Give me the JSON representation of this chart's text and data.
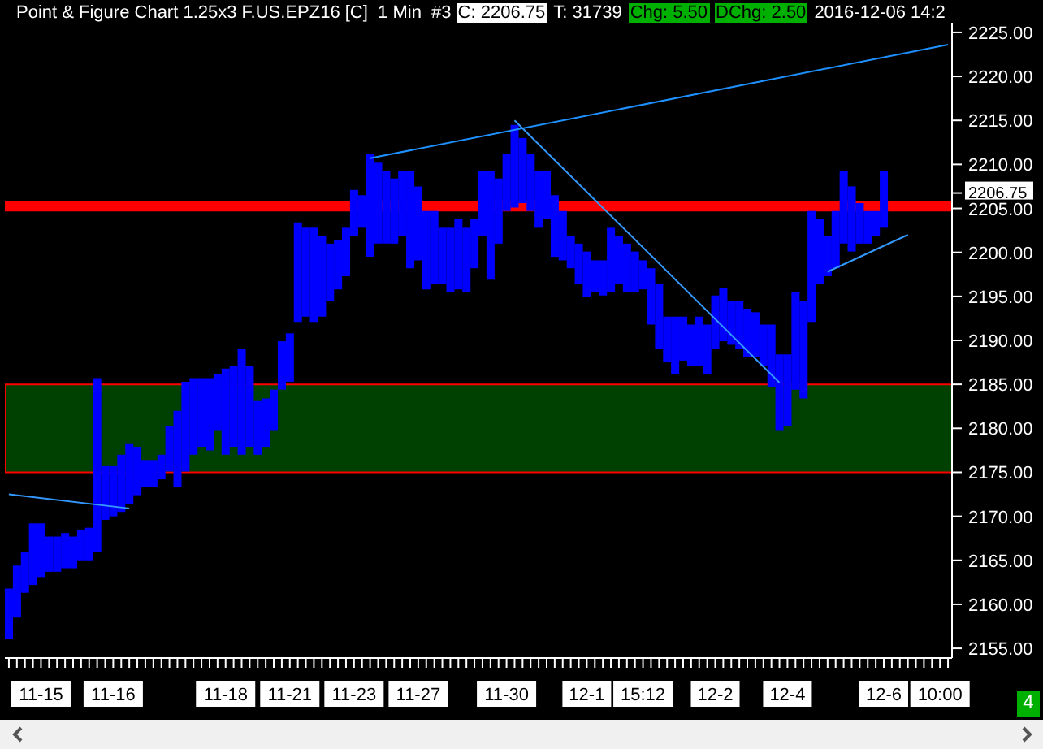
{
  "chart_data": {
    "type": "bar",
    "title": "Point & Figure Chart 1.25x3 F.US.EPZ16 [C]  1 Min  #3",
    "annotations": [
      "C: 2206.75",
      "T: 31739",
      "Chg: 5.50",
      "DChg: 2.50",
      "2016-12-06 14:2",
      "4"
    ],
    "categories": [
      null,
      null,
      null,
      null,
      "11-15",
      null,
      null,
      null,
      null,
      null,
      null,
      null,
      null,
      "11-16",
      null,
      null,
      null,
      null,
      null,
      null,
      null,
      null,
      null,
      null,
      null,
      null,
      null,
      "11-18",
      null,
      null,
      null,
      null,
      null,
      null,
      null,
      "11-21",
      null,
      null,
      null,
      null,
      null,
      null,
      null,
      "11-23",
      null,
      null,
      null,
      null,
      null,
      null,
      null,
      "11-27",
      null,
      null,
      null,
      null,
      null,
      null,
      null,
      null,
      null,
      null,
      "11-30",
      null,
      null,
      null,
      null,
      null,
      null,
      null,
      null,
      null,
      "12-1",
      null,
      null,
      null,
      null,
      null,
      null,
      "15:12",
      null,
      null,
      null,
      null,
      null,
      null,
      null,
      null,
      "12-2",
      null,
      null,
      null,
      null,
      null,
      null,
      null,
      null,
      "12-4",
      null,
      null,
      null,
      null,
      null,
      null,
      null,
      null,
      null,
      null,
      null,
      "12-6",
      null,
      null,
      null,
      null,
      null,
      null,
      "10:00",
      null
    ],
    "series": [
      {
        "color": "#0000ff",
        "values": [
          5.7,
          5.9,
          4.6,
          7.0,
          6.1,
          4.0,
          4.0,
          4.0,
          3.6,
          3.5,
          3.7,
          19.8,
          6.1,
          5.7,
          6.5,
          6.9,
          5.5,
          3.1,
          3.1,
          2.8,
          5.2,
          8.7,
          10.2,
          8.7,
          7.8,
          8.2,
          6.4,
          9.8,
          9.2,
          12.0,
          9.2,
          6.1,
          5.5,
          4.6,
          5.5,
          5.5,
          11.3,
          10.1,
          10.7,
          9.2,
          6.5,
          5.6,
          5.5,
          5.2,
          3.7,
          11.7,
          9.2,
          8.3,
          7.4,
          7.4,
          11.1,
          8.4,
          8.9,
          8.3,
          6.4,
          7.3,
          8.0,
          7.3,
          5.6,
          7.4,
          12.4,
          7.4,
          6.5,
          9.4,
          7.4,
          6.5,
          6.5,
          5.5,
          7.0,
          5.6,
          3.7,
          4.6,
          5.2,
          3.6,
          4.0,
          7.3,
          5.5,
          5.5,
          4.6,
          3.3,
          6.4,
          7.4,
          5.2,
          6.5,
          5.0,
          4.7,
          5.6,
          5.6,
          6.1,
          6.1,
          5.0,
          5.5,
          5.5,
          5.1,
          4.7,
          7.1,
          8.6,
          8.1,
          11.1,
          11.1,
          12.6,
          7.4,
          4.6,
          6.5,
          8.3,
          7.4,
          4.6,
          3.7,
          2.8,
          6.5,
          null,
          null,
          null,
          null,
          null,
          null,
          null,
          null
        ],
        "base": [
          2156.1,
          2158.5,
          2161.3,
          2162.2,
          2163.1,
          2163.7,
          2163.7,
          2164.1,
          2164.1,
          2165.0,
          2165.0,
          2165.9,
          2169.6,
          2170.0,
          2170.5,
          2171.4,
          2172.4,
          2173.3,
          2173.3,
          2174.2,
          2175.1,
          2173.3,
          2175.1,
          2177.0,
          2177.9,
          2177.5,
          2179.8,
          2177.0,
          2177.9,
          2177.0,
          2177.9,
          2177.0,
          2177.9,
          2179.8,
          2184.4,
          2185.3,
          2192.1,
          2192.7,
          2192.1,
          2192.7,
          2194.5,
          2195.8,
          2197.3,
          2201.9,
          2202.8,
          2199.5,
          2201.0,
          2201.0,
          2201.0,
          2201.9,
          2198.2,
          2199.1,
          2195.8,
          2196.4,
          2196.4,
          2195.5,
          2195.8,
          2195.5,
          2198.2,
          2201.9,
          2196.9,
          2201.0,
          2204.7,
          2205.1,
          2205.6,
          2204.7,
          2202.8,
          2203.8,
          2199.5,
          2199.1,
          2198.2,
          2196.4,
          2194.9,
          2195.5,
          2195.1,
          2195.5,
          2196.4,
          2195.5,
          2195.5,
          2195.8,
          2191.8,
          2189.0,
          2187.5,
          2186.2,
          2187.7,
          2187.1,
          2187.1,
          2186.2,
          2189.0,
          2189.9,
          2189.5,
          2189.0,
          2188.1,
          2188.1,
          2187.1,
          2184.7,
          2179.8,
          2180.3,
          2184.4,
          2183.4,
          2192.1,
          2196.4,
          2197.3,
          2198.2,
          2201.0,
          2200.1,
          2201.0,
          2201.0,
          2201.9,
          2202.8,
          null,
          null,
          null,
          null,
          null,
          null,
          null,
          null
        ]
      },
      {
        "type": "line",
        "color": "#1e90ff",
        "values": [
          null,
          null,
          null,
          null,
          null,
          null,
          null,
          null,
          null,
          null,
          null,
          null,
          null,
          null,
          null,
          null,
          null,
          null,
          null,
          null,
          null,
          null,
          null,
          null,
          null,
          null,
          null,
          null,
          null,
          null,
          null,
          null,
          null,
          null,
          null,
          null,
          null,
          null,
          null,
          null,
          null,
          null,
          null,
          null,
          null,
          2210.7,
          null,
          null,
          null,
          null,
          null,
          null,
          null,
          null,
          null,
          null,
          null,
          null,
          null,
          null,
          null,
          null,
          null,
          null,
          null,
          null,
          null,
          null,
          null,
          null,
          null,
          null,
          null,
          null,
          null,
          null,
          null,
          null,
          null,
          null,
          null,
          null,
          null,
          null,
          null,
          null,
          null,
          null,
          null,
          null,
          null,
          null,
          null,
          null,
          null,
          null,
          null,
          null,
          null,
          null,
          null,
          null,
          null,
          null,
          null,
          null,
          null,
          null,
          null,
          null,
          null,
          null,
          null,
          null,
          null,
          null,
          null,
          2223.6
        ]
      },
      {
        "type": "line",
        "color": "#3399ff",
        "values": [
          null,
          null,
          null,
          null,
          null,
          null,
          null,
          null,
          null,
          null,
          null,
          null,
          null,
          null,
          null,
          null,
          null,
          null,
          null,
          null,
          null,
          null,
          null,
          null,
          null,
          null,
          null,
          null,
          null,
          null,
          null,
          null,
          null,
          null,
          null,
          null,
          null,
          null,
          null,
          null,
          null,
          null,
          null,
          null,
          null,
          null,
          null,
          null,
          null,
          null,
          null,
          null,
          null,
          null,
          null,
          null,
          null,
          null,
          null,
          null,
          null,
          null,
          null,
          2215.0,
          null,
          null,
          null,
          null,
          null,
          null,
          null,
          null,
          null,
          null,
          null,
          null,
          null,
          null,
          null,
          null,
          null,
          null,
          null,
          null,
          null,
          null,
          null,
          null,
          null,
          null,
          null,
          null,
          null,
          null,
          null,
          null,
          2185.2,
          null,
          null,
          null,
          null,
          null,
          null,
          null,
          null,
          null,
          null,
          null,
          null,
          null,
          null,
          null,
          null,
          null,
          null,
          null,
          null,
          null
        ]
      },
      {
        "type": "line",
        "color": "#3399ff",
        "values": [
          null,
          null,
          null,
          null,
          null,
          null,
          null,
          null,
          null,
          null,
          null,
          null,
          null,
          null,
          null,
          null,
          null,
          null,
          null,
          null,
          null,
          null,
          null,
          null,
          null,
          null,
          null,
          null,
          null,
          null,
          null,
          null,
          null,
          null,
          null,
          null,
          null,
          null,
          null,
          null,
          null,
          null,
          null,
          null,
          null,
          null,
          null,
          null,
          null,
          null,
          null,
          null,
          null,
          null,
          null,
          null,
          null,
          null,
          null,
          null,
          null,
          null,
          null,
          null,
          null,
          null,
          null,
          null,
          null,
          null,
          null,
          null,
          null,
          null,
          null,
          null,
          null,
          null,
          null,
          null,
          null,
          null,
          null,
          null,
          null,
          null,
          null,
          null,
          null,
          null,
          null,
          null,
          null,
          null,
          null,
          null,
          null,
          null,
          null,
          null,
          null,
          null,
          2197.8,
          null,
          null,
          null,
          null,
          null,
          null,
          null,
          null,
          null,
          2202.0,
          null,
          null,
          null,
          null,
          null
        ]
      },
      {
        "type": "line",
        "color": "#3399ff",
        "values": [
          2172.5,
          null,
          null,
          null,
          null,
          null,
          null,
          null,
          null,
          null,
          null,
          null,
          null,
          null,
          null,
          2170.9,
          null,
          null,
          null,
          null,
          null,
          null,
          null,
          null,
          null,
          null,
          null,
          null,
          null,
          null,
          null,
          null,
          null,
          null,
          null,
          null,
          null,
          null,
          null,
          null,
          null,
          null,
          null,
          null,
          null,
          null,
          null,
          null,
          null,
          null,
          null,
          null,
          null,
          null,
          null,
          null,
          null,
          null,
          null,
          null,
          null,
          null,
          null,
          null,
          null,
          null,
          null,
          null,
          null,
          null,
          null,
          null,
          null,
          null,
          null,
          null,
          null,
          null,
          null,
          null,
          null,
          null,
          null,
          null,
          null,
          null,
          null,
          null,
          null,
          null,
          null,
          null,
          null,
          null,
          null,
          null,
          null,
          null,
          null,
          null,
          null,
          null,
          null,
          null,
          null,
          null,
          null,
          null,
          null,
          null,
          null,
          null,
          null,
          null,
          null,
          null,
          null,
          null
        ]
      }
    ],
    "bands": [
      {
        "axis": "y",
        "from": 2175,
        "to": 2185,
        "color": "#004000"
      },
      {
        "axis": "y",
        "from": 2204.75,
        "to": 2205.75,
        "color": "#ff0000"
      }
    ],
    "ylim": [
      2153.9,
      2226.1
    ],
    "yticks": [
      {
        "value": 2155,
        "label": "2155.00"
      },
      {
        "value": 2160,
        "label": "2160.00"
      },
      {
        "value": 2165,
        "label": "2165.00"
      },
      {
        "value": 2170,
        "label": "2170.00"
      },
      {
        "value": 2175,
        "label": "2175.00"
      },
      {
        "value": 2180,
        "label": "2180.00"
      },
      {
        "value": 2185,
        "label": "2185.00"
      },
      {
        "value": 2190,
        "label": "2190.00"
      },
      {
        "value": 2195,
        "label": "2195.00"
      },
      {
        "value": 2200,
        "label": "2200.00"
      },
      {
        "value": 2205,
        "label": "2205.00"
      },
      {
        "value": 2206.75,
        "label": "2206.75"
      },
      {
        "value": 2210,
        "label": "2210.00"
      },
      {
        "value": 2215,
        "label": "2215.00"
      },
      {
        "value": 2220,
        "label": "2220.00"
      },
      {
        "value": 2225,
        "label": "2225.00"
      }
    ],
    "grid": false,
    "legend": false
  }
}
